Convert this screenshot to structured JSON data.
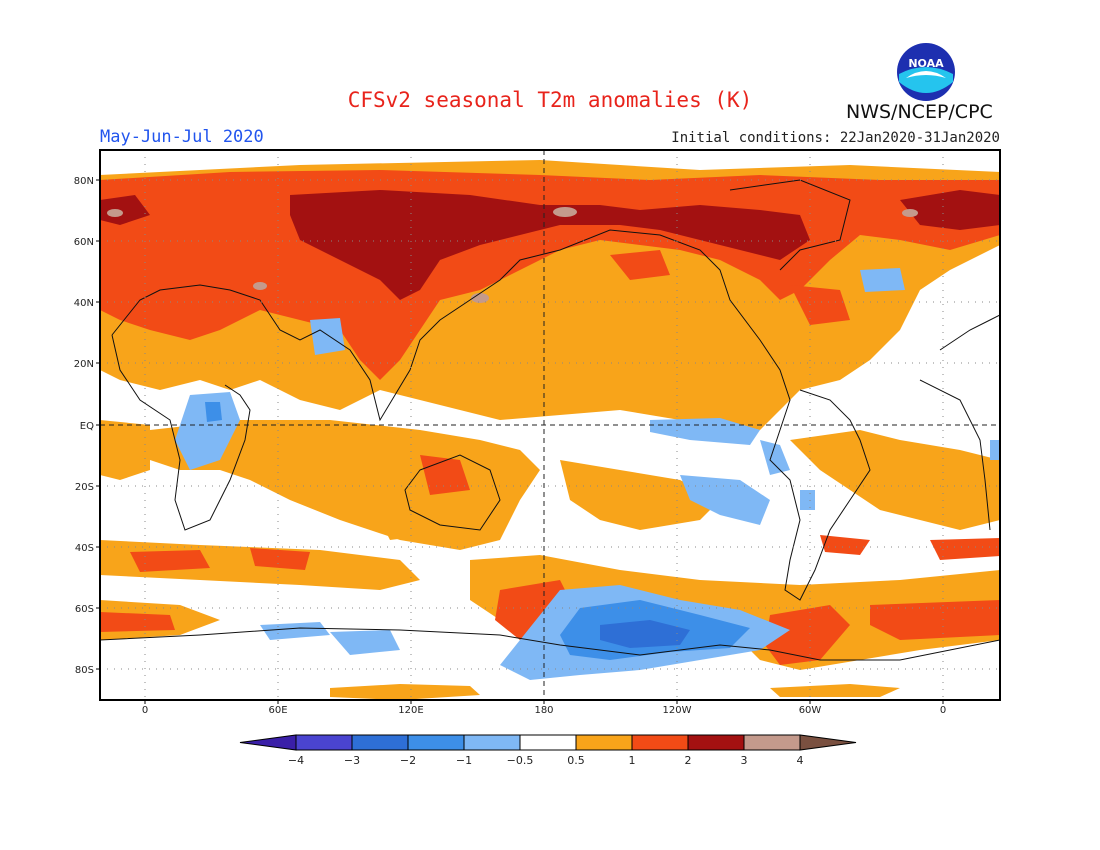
{
  "title": "CFSv2 seasonal T2m anomalies (K)",
  "season": "May-Jun-Jul 2020",
  "initial_conditions": "Initial conditions: 22Jan2020-31Jan2020",
  "agency": "NWS/NCEP/CPC",
  "logo": {
    "text": "NOAA",
    "icon": "noaa-logo"
  },
  "map": {
    "projection": "equirectangular, centered 180",
    "lat_labels": [
      "80N",
      "60N",
      "40N",
      "20N",
      "EQ",
      "20S",
      "40S",
      "60S",
      "80S"
    ],
    "lon_labels": [
      "0",
      "60E",
      "120E",
      "180",
      "120W",
      "60W",
      "0"
    ],
    "grid": "dotted"
  },
  "colorbar": {
    "tick_labels": [
      "−4",
      "−3",
      "−2",
      "−1",
      "−0.5",
      "0.5",
      "1",
      "2",
      "3",
      "4"
    ],
    "colors": [
      "#3a1fa8",
      "#4a44d0",
      "#2e6fd6",
      "#3d8fe8",
      "#7fb8f5",
      "#ffffff",
      "#f8a41a",
      "#f24b16",
      "#a31111",
      "#c49a8c",
      "#7a5040"
    ]
  },
  "colors": {
    "warm_05_1": "#f8a41a",
    "warm_1_2": "#f24b16",
    "warm_2_3": "#a31111",
    "warm_3_4": "#c49a8c",
    "cool_05_1": "#7fb8f5",
    "cool_1_2": "#3d8fe8",
    "cool_2_3": "#2e6fd6",
    "cool_3_4": "#4a44d0"
  }
}
